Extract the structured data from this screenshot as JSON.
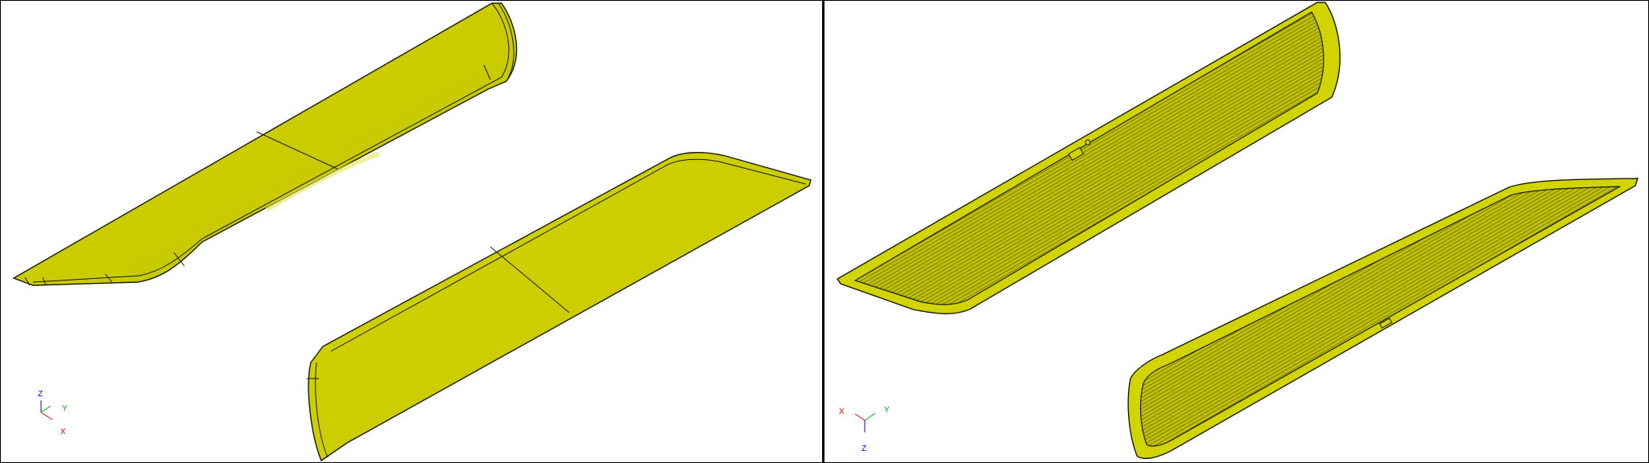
{
  "viewports": [
    {
      "id": "left",
      "view": "shaded-with-edges",
      "triad": {
        "x_label": "X",
        "y_label": "Y",
        "z_label": "Z"
      }
    },
    {
      "id": "right",
      "view": "shaded-inner-hatched",
      "triad": {
        "x_label": "X",
        "y_label": "Y",
        "z_label": "Z"
      }
    }
  ],
  "colors": {
    "part_fill": "#cdcf00",
    "part_fill_dark": "#b4b600",
    "part_fill_light": "#dedf3a",
    "edge": "#1a1a00",
    "axis_x": "#e00000",
    "axis_y": "#00b000",
    "axis_z": "#0000e0",
    "divider": "#000000"
  }
}
